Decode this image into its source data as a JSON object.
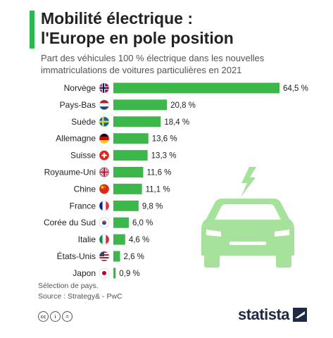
{
  "header": {
    "title_line1": "Mobilité électrique :",
    "title_line2": "l'Europe en pole position",
    "subtitle_line1": "Part des véhicules 100 % électrique dans les nouvelles",
    "subtitle_line2": "immatriculations de voitures particulières en 2021"
  },
  "colors": {
    "bar": "#3cb84a",
    "accent": "#2db84b",
    "icon": "#a6e29b",
    "brand": "#1f2a44"
  },
  "chart_data": {
    "type": "bar",
    "orientation": "horizontal",
    "categories": [
      "Norvège",
      "Pays-Bas",
      "Suède",
      "Allemagne",
      "Suisse",
      "Royaume-Uni",
      "Chine",
      "France",
      "Corée du Sud",
      "Italie",
      "États-Unis",
      "Japon"
    ],
    "values": [
      64.5,
      20.8,
      18.4,
      13.6,
      13.3,
      11.6,
      11.1,
      9.8,
      6.0,
      4.6,
      2.6,
      0.9
    ],
    "value_labels": [
      "64,5 %",
      "20,8 %",
      "18,4 %",
      "13,6 %",
      "13,3 %",
      "11,6 %",
      "11,1 %",
      "9,8 %",
      "6,0 %",
      "4,6 %",
      "2,6 %",
      "0,9 %"
    ],
    "flags": [
      "norway-flag-icon",
      "netherlands-flag-icon",
      "sweden-flag-icon",
      "germany-flag-icon",
      "switzerland-flag-icon",
      "uk-flag-icon",
      "china-flag-icon",
      "france-flag-icon",
      "south-korea-flag-icon",
      "italy-flag-icon",
      "usa-flag-icon",
      "japan-flag-icon"
    ],
    "xlim": [
      0,
      64.5
    ],
    "grid": false,
    "legend": "none"
  },
  "decoration": {
    "icon": "electric-car-icon"
  },
  "footer": {
    "note": "Sélection de pays.",
    "source": "Source : Strategy& - PwC",
    "license_icons": [
      "cc-icon",
      "by-icon",
      "equals-icon"
    ],
    "license_symbols": [
      "cc",
      "i",
      "="
    ],
    "brand": "statista"
  }
}
